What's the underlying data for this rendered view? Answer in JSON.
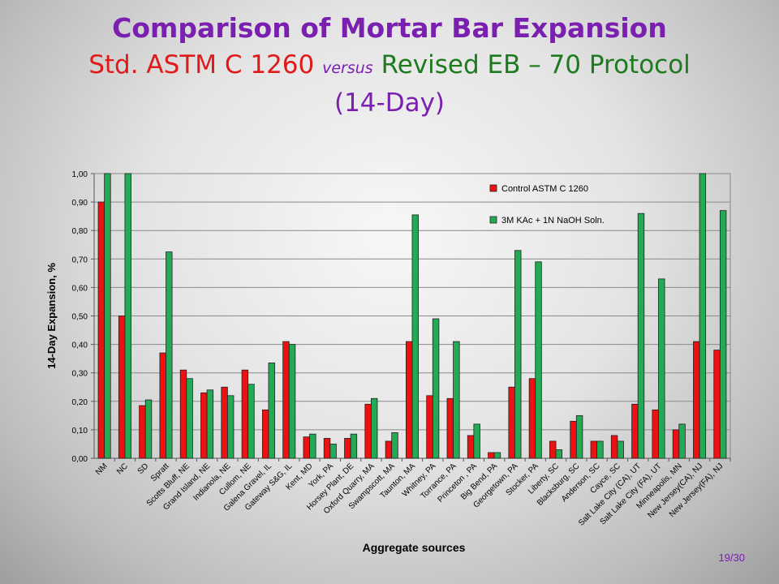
{
  "slide": {
    "title_line1": "Comparison of Mortar Bar Expansion",
    "title_part_a": "Std. ASTM C 1260",
    "title_part_b": "versus",
    "title_part_c": "Revised EB – 70 Protocol",
    "title_line3": "(14-Day)",
    "page_number": "19/30"
  },
  "colors": {
    "title_line1": "#7a1fb0",
    "part_a": "#e01a1a",
    "part_b": "#7a1fb0",
    "part_c": "#1e7a1e",
    "line3": "#7a1fb0",
    "page_number": "#7a1fb0",
    "series_control": "#ee1111",
    "series_kac": "#22aa55"
  },
  "chart_data": {
    "type": "bar",
    "xlabel": "Aggregate sources",
    "ylabel": "14-Day Expansion, %",
    "ylim": [
      0,
      1.0
    ],
    "yticks": [
      "0,00",
      "0,10",
      "0,20",
      "0,30",
      "0,40",
      "0,50",
      "0,60",
      "0,70",
      "0,80",
      "0,90",
      "1,00"
    ],
    "grid": true,
    "legend_position": "top-right",
    "categories": [
      "NM",
      "NC",
      "SD",
      "Spratt",
      "Scotts Bluff, NE",
      "Grand Island, NE",
      "Indianola, NE",
      "Cullom, NE",
      "Galena Gravel, IL",
      "Gateway S&G, IL",
      "Kent, MD",
      "York, PA",
      "Horsey Plant, DE",
      "Oxford Quarry, MA",
      "Swampscott, MA",
      "Taunton, MA",
      "Whitney, PA",
      "Torrance, PA",
      "Princeton , PA",
      "Big Bend, PA",
      "Georgetown, PA",
      "Stocker, PA",
      "Liberty, SC",
      "Blacksburg, SC",
      "Anderson, SC",
      "Cayce, SC",
      "Salt Lake City (CA), UT",
      "Salt Lake City (FA), UT",
      "Minneapolis, MN",
      "New Jersey(CA), NJ",
      "New Jersey(FA), NJ"
    ],
    "series": [
      {
        "name": "Control ASTM C 1260",
        "values": [
          0.9,
          0.5,
          0.185,
          0.37,
          0.31,
          0.23,
          0.25,
          0.31,
          0.17,
          0.41,
          0.075,
          0.07,
          0.07,
          0.19,
          0.06,
          0.41,
          0.22,
          0.21,
          0.08,
          0.02,
          0.25,
          0.28,
          0.06,
          0.13,
          0.06,
          0.08,
          0.19,
          0.17,
          0.1,
          0.41,
          0.38
        ]
      },
      {
        "name": "3M KAc + 1N NaOH Soln.",
        "values": [
          1.0,
          1.0,
          0.205,
          0.725,
          0.28,
          0.24,
          0.22,
          0.26,
          0.335,
          0.4,
          0.085,
          0.05,
          0.085,
          0.21,
          0.09,
          0.855,
          0.49,
          0.41,
          0.12,
          0.02,
          0.73,
          0.69,
          0.03,
          0.15,
          0.06,
          0.06,
          0.86,
          0.63,
          0.12,
          1.0,
          0.87
        ]
      }
    ]
  }
}
